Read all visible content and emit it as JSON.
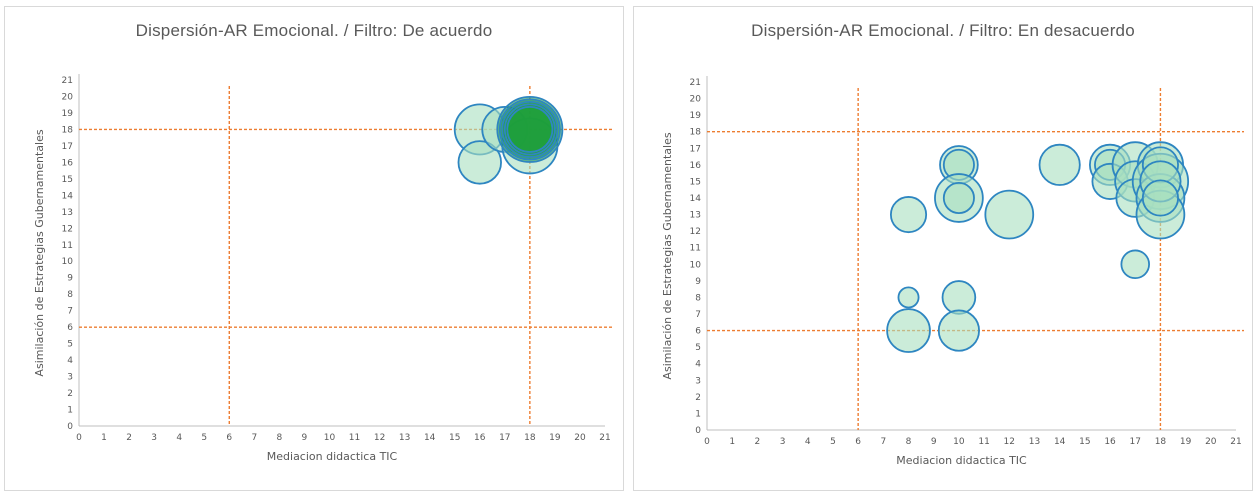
{
  "chart_data": [
    {
      "type": "scatter",
      "subtype": "bubble",
      "title": "Dispersión-AR Emocional. / Filtro: De acuerdo",
      "xlabel": "Mediacion didactica TIC",
      "ylabel": "Asimilación de Estrategias Gubernamentales",
      "xlim": [
        0,
        21
      ],
      "ylim": [
        0,
        21
      ],
      "xticks": [
        0,
        1,
        2,
        3,
        4,
        5,
        6,
        7,
        8,
        9,
        10,
        11,
        12,
        13,
        14,
        15,
        16,
        17,
        18,
        19,
        20,
        21
      ],
      "yticks": [
        0,
        1,
        2,
        3,
        4,
        5,
        6,
        7,
        8,
        9,
        10,
        11,
        12,
        13,
        14,
        15,
        16,
        17,
        18,
        19,
        20,
        21
      ],
      "reference_lines": {
        "x": [
          6,
          18
        ],
        "y": [
          6,
          18
        ],
        "color": "#ED7D31",
        "style": "dashed"
      },
      "grid": false,
      "bubble_fill": "#A9DFBF",
      "bubble_fill_strong": "#1E9E3A",
      "bubble_stroke": "#2E86C1",
      "points": [
        {
          "x": 16,
          "y": 18,
          "r": 1.0
        },
        {
          "x": 16,
          "y": 16,
          "r": 0.85
        },
        {
          "x": 17,
          "y": 18,
          "r": 0.9
        },
        {
          "x": 18,
          "y": 17,
          "r": 1.1
        },
        {
          "x": 18,
          "y": 18,
          "r": 1.3,
          "dense": true
        },
        {
          "x": 18,
          "y": 18,
          "r": 1.2,
          "dense": true
        },
        {
          "x": 18,
          "y": 18,
          "r": 1.1,
          "dense": true
        },
        {
          "x": 18,
          "y": 18,
          "r": 1.0,
          "dense": true
        },
        {
          "x": 18,
          "y": 18,
          "r": 0.9,
          "dense": true
        }
      ]
    },
    {
      "type": "scatter",
      "subtype": "bubble",
      "title": "Dispersión-AR Emocional. / Filtro: En desacuerdo",
      "xlabel": "Mediacion didactica TIC",
      "ylabel": "Asimilación de Estrategias Gubernamentales",
      "xlim": [
        0,
        21
      ],
      "ylim": [
        0,
        21
      ],
      "xticks": [
        0,
        1,
        2,
        3,
        4,
        5,
        6,
        7,
        8,
        9,
        10,
        11,
        12,
        13,
        14,
        15,
        16,
        17,
        18,
        19,
        20,
        21
      ],
      "yticks": [
        0,
        1,
        2,
        3,
        4,
        5,
        6,
        7,
        8,
        9,
        10,
        11,
        12,
        13,
        14,
        15,
        16,
        17,
        18,
        19,
        20,
        21
      ],
      "reference_lines": {
        "x": [
          6,
          18
        ],
        "y": [
          6,
          18
        ],
        "color": "#ED7D31",
        "style": "dashed"
      },
      "grid": false,
      "bubble_fill": "#A9DFBF",
      "bubble_fill_strong": "#1E9E3A",
      "bubble_stroke": "#2E86C1",
      "points": [
        {
          "x": 8,
          "y": 13,
          "r": 0.7
        },
        {
          "x": 8,
          "y": 8,
          "r": 0.4
        },
        {
          "x": 8,
          "y": 6,
          "r": 0.85
        },
        {
          "x": 10,
          "y": 16,
          "r": 0.75
        },
        {
          "x": 10,
          "y": 16,
          "r": 0.6
        },
        {
          "x": 10,
          "y": 14,
          "r": 0.95
        },
        {
          "x": 10,
          "y": 14,
          "r": 0.6
        },
        {
          "x": 10,
          "y": 8,
          "r": 0.65
        },
        {
          "x": 10,
          "y": 6,
          "r": 0.8
        },
        {
          "x": 12,
          "y": 13,
          "r": 0.95
        },
        {
          "x": 14,
          "y": 16,
          "r": 0.8
        },
        {
          "x": 16,
          "y": 16,
          "r": 0.8
        },
        {
          "x": 16,
          "y": 16,
          "r": 0.6
        },
        {
          "x": 16,
          "y": 15,
          "r": 0.7
        },
        {
          "x": 17,
          "y": 16,
          "r": 0.9
        },
        {
          "x": 17,
          "y": 15,
          "r": 0.8
        },
        {
          "x": 17,
          "y": 14,
          "r": 0.75
        },
        {
          "x": 17,
          "y": 10,
          "r": 0.55
        },
        {
          "x": 18,
          "y": 16,
          "r": 0.9
        },
        {
          "x": 18,
          "y": 15,
          "r": 1.1
        },
        {
          "x": 18,
          "y": 14,
          "r": 0.95
        },
        {
          "x": 18,
          "y": 13,
          "r": 0.95
        },
        {
          "x": 18,
          "y": 16,
          "r": 0.7
        },
        {
          "x": 18,
          "y": 15,
          "r": 0.8
        },
        {
          "x": 18,
          "y": 14,
          "r": 0.7
        }
      ]
    }
  ]
}
